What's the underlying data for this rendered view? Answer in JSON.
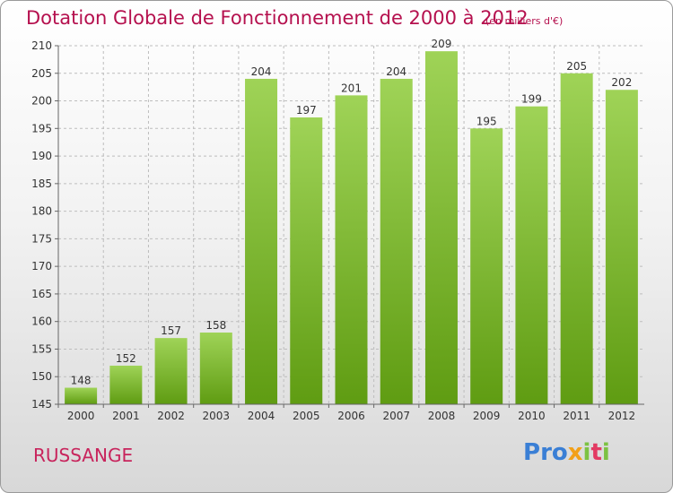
{
  "title": "Dotation Globale de Fonctionnement de 2000 à 2012",
  "subtitle": "(en milliers d'€)",
  "commune": "RUSSANGE",
  "logo": {
    "text": "Proxiti",
    "letters": [
      {
        "ch": "P",
        "color": "#3a7fd5"
      },
      {
        "ch": "r",
        "color": "#3a7fd5"
      },
      {
        "ch": "o",
        "color": "#3a7fd5"
      },
      {
        "ch": "x",
        "color": "#f2a019"
      },
      {
        "ch": "i",
        "color": "#7cc242"
      },
      {
        "ch": "t",
        "color": "#e33a63"
      },
      {
        "ch": "i",
        "color": "#7cc242"
      }
    ]
  },
  "colors": {
    "title": "#b5104e",
    "bar_light": "#9fd357",
    "bar_dark": "#5f9c12",
    "grid": "#bdbdbd"
  },
  "chart_data": {
    "type": "bar",
    "categories": [
      "2000",
      "2001",
      "2002",
      "2003",
      "2004",
      "2005",
      "2006",
      "2007",
      "2008",
      "2009",
      "2010",
      "2011",
      "2012"
    ],
    "values": [
      148,
      152,
      157,
      158,
      204,
      197,
      201,
      204,
      209,
      195,
      199,
      205,
      202
    ],
    "ylim": [
      145,
      210
    ],
    "yticks": [
      145,
      150,
      155,
      160,
      165,
      170,
      175,
      180,
      185,
      190,
      195,
      200,
      205,
      210
    ],
    "xlabel": "",
    "ylabel": "",
    "grid": true,
    "data_labels": true
  }
}
